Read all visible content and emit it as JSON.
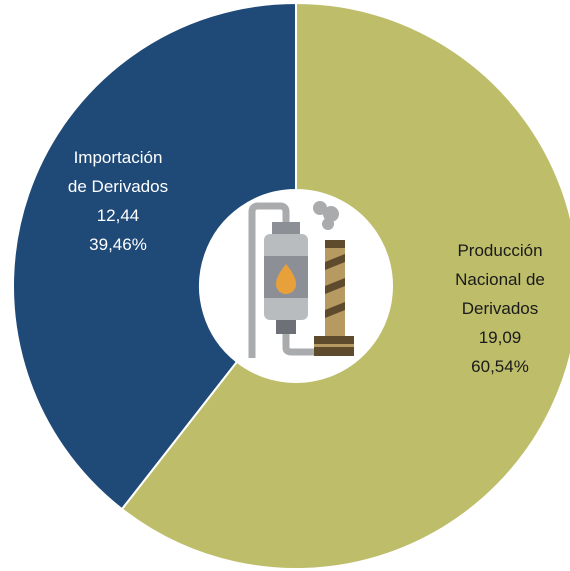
{
  "chart_data": {
    "type": "donut",
    "categories": [
      "Producción Nacional de Derivados",
      "Importación de Derivados"
    ],
    "values": [
      19.09,
      12.44
    ],
    "value_labels": [
      "19,09",
      "12,44"
    ],
    "percents": [
      60.54,
      39.46
    ],
    "percent_labels": [
      "60,54%",
      "39,46%"
    ],
    "colors": [
      "#bdbd6a",
      "#1f4a78"
    ],
    "label_colors": [
      "#1a1a1a",
      "#ffffff"
    ]
  }
}
